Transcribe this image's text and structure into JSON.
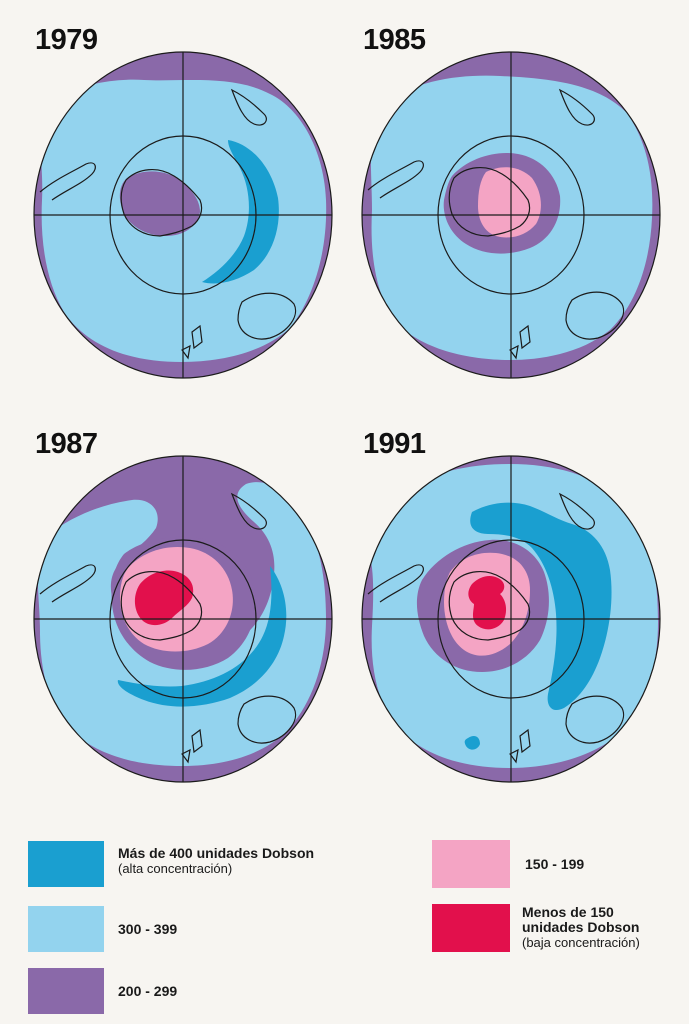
{
  "panels": [
    {
      "year": "1979"
    },
    {
      "year": "1985"
    },
    {
      "year": "1987"
    },
    {
      "year": "1991"
    }
  ],
  "colors": {
    "gt400": "#1a9fd0",
    "r300_399": "#93d3ee",
    "r200_299": "#8a69a9",
    "r150_199": "#f4a4c4",
    "lt150": "#e2104c",
    "lines": "#1b1b1b",
    "background": "#f7f5f1"
  },
  "legend": {
    "gt400": {
      "label": "Más de 400 unidades Dobson",
      "note": "(alta concentración)"
    },
    "r300_399": {
      "label": "300 - 399"
    },
    "r200_299": {
      "label": "200 - 299"
    },
    "r150_199": {
      "label": "150 - 199"
    },
    "lt150": {
      "label": "Menos de 150 unidades Dobson",
      "note": "(baja concentración)"
    }
  }
}
